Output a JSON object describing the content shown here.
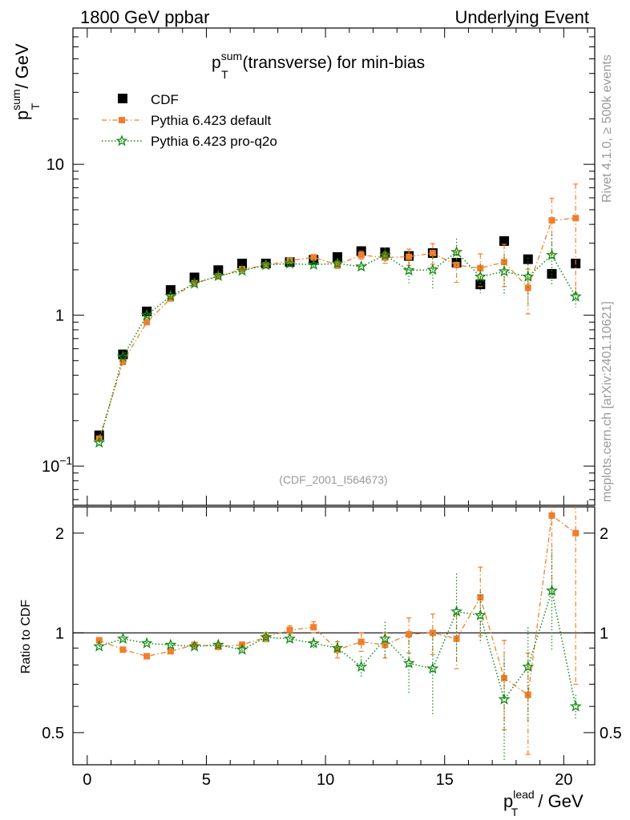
{
  "header": {
    "left": "1800 GeV ppbar",
    "right": "Underlying Event"
  },
  "side_text": {
    "rivet": "Rivet 4.1.0, ≥ 500k events",
    "mcplots": "mcplots.cern.ch [arXiv:2401.10621]"
  },
  "plot_title": {
    "main": "p",
    "sup": "sum",
    "sub": "T",
    "rest": " (transverse) for min-bias"
  },
  "ylabel_top": {
    "main": "p",
    "sup": "sum",
    "sub": "T",
    "rest": " / GeV"
  },
  "ylabel_bottom": "Ratio to CDF",
  "xlabel": {
    "main": "p",
    "sup": "lead",
    "sub": "T",
    "rest": " / GeV"
  },
  "analysis_id": "(CDF_2001_I564673)",
  "colors": {
    "data": "#000000",
    "default": "#f07e2c",
    "proq2o": "#128a12",
    "watermark": "#999999"
  },
  "chart_data": {
    "type": "scatter",
    "x": [
      0.5,
      1.5,
      2.5,
      3.5,
      4.5,
      5.5,
      6.5,
      7.5,
      8.5,
      9.5,
      10.5,
      11.5,
      12.5,
      13.5,
      14.5,
      15.5,
      16.5,
      17.5,
      18.5,
      19.5,
      20.5
    ],
    "xlim": [
      -0.6,
      21.3
    ],
    "main_ylim": [
      0.055,
      80
    ],
    "main_yscale": "log",
    "main_yticks": [
      {
        "value": 0.1,
        "label": "10",
        "exp": "−1"
      },
      {
        "value": 1,
        "label": "1"
      },
      {
        "value": 10,
        "label": "10"
      }
    ],
    "ratio_ylim": [
      0.4,
      2.4
    ],
    "ratio_yscale": "log",
    "ratio_yticks": [
      {
        "value": 0.5,
        "label": "0.5"
      },
      {
        "value": 1,
        "label": "1"
      },
      {
        "value": 2,
        "label": "2"
      }
    ],
    "xticks": [
      {
        "value": 0,
        "label": "0"
      },
      {
        "value": 5,
        "label": "5"
      },
      {
        "value": 10,
        "label": "10"
      },
      {
        "value": 15,
        "label": "15"
      },
      {
        "value": 20,
        "label": "20"
      }
    ],
    "series": [
      {
        "name": "CDF",
        "key": "data",
        "values": [
          0.16,
          0.55,
          1.06,
          1.47,
          1.78,
          1.99,
          2.2,
          2.2,
          2.25,
          2.33,
          2.43,
          2.66,
          2.61,
          2.47,
          2.58,
          2.23,
          1.6,
          3.1,
          2.35,
          1.88,
          2.2
        ]
      },
      {
        "name": "Pythia 6.423 default",
        "key": "default",
        "values": [
          0.152,
          0.49,
          0.9,
          1.29,
          1.63,
          1.81,
          2.02,
          2.14,
          2.3,
          2.42,
          2.16,
          2.5,
          2.41,
          2.44,
          2.58,
          2.15,
          2.05,
          2.25,
          1.52,
          4.25,
          4.4
        ],
        "errors": [
          0.005,
          0.01,
          0.02,
          0.03,
          0.03,
          0.04,
          0.05,
          0.06,
          0.08,
          0.1,
          0.12,
          0.15,
          0.2,
          0.3,
          0.4,
          0.5,
          0.5,
          0.7,
          0.5,
          1.7,
          3.0
        ],
        "ratio": [
          0.95,
          0.89,
          0.85,
          0.88,
          0.92,
          0.91,
          0.92,
          0.97,
          1.02,
          1.04,
          0.89,
          0.94,
          0.92,
          0.99,
          1.0,
          0.96,
          1.28,
          0.73,
          0.65,
          2.26,
          2.0
        ],
        "ratio_errors": [
          0.01,
          0.01,
          0.01,
          0.01,
          0.01,
          0.02,
          0.02,
          0.03,
          0.03,
          0.04,
          0.05,
          0.06,
          0.08,
          0.12,
          0.14,
          0.18,
          0.3,
          0.22,
          0.22,
          0.9,
          1.3
        ]
      },
      {
        "name": "Pythia 6.423 pro-q2o",
        "key": "proq2o",
        "values": [
          0.143,
          0.53,
          1.0,
          1.34,
          1.62,
          1.82,
          1.97,
          2.15,
          2.2,
          2.16,
          2.2,
          2.1,
          2.5,
          1.98,
          2.0,
          2.62,
          1.8,
          1.95,
          1.8,
          2.5,
          1.33
        ],
        "errors": [
          0.005,
          0.01,
          0.02,
          0.03,
          0.03,
          0.04,
          0.05,
          0.06,
          0.08,
          0.1,
          0.12,
          0.15,
          0.3,
          0.35,
          0.5,
          0.6,
          0.4,
          0.6,
          0.6,
          0.9,
          0.2
        ],
        "ratio": [
          0.91,
          0.96,
          0.93,
          0.92,
          0.91,
          0.92,
          0.89,
          0.97,
          0.96,
          0.93,
          0.9,
          0.79,
          0.96,
          0.81,
          0.78,
          1.16,
          1.13,
          0.63,
          0.79,
          1.34,
          0.6
        ],
        "ratio_errors": [
          0.01,
          0.01,
          0.01,
          0.01,
          0.01,
          0.02,
          0.02,
          0.03,
          0.03,
          0.04,
          0.05,
          0.06,
          0.12,
          0.16,
          0.22,
          0.35,
          0.2,
          0.22,
          0.25,
          0.45,
          0.05
        ]
      }
    ]
  }
}
